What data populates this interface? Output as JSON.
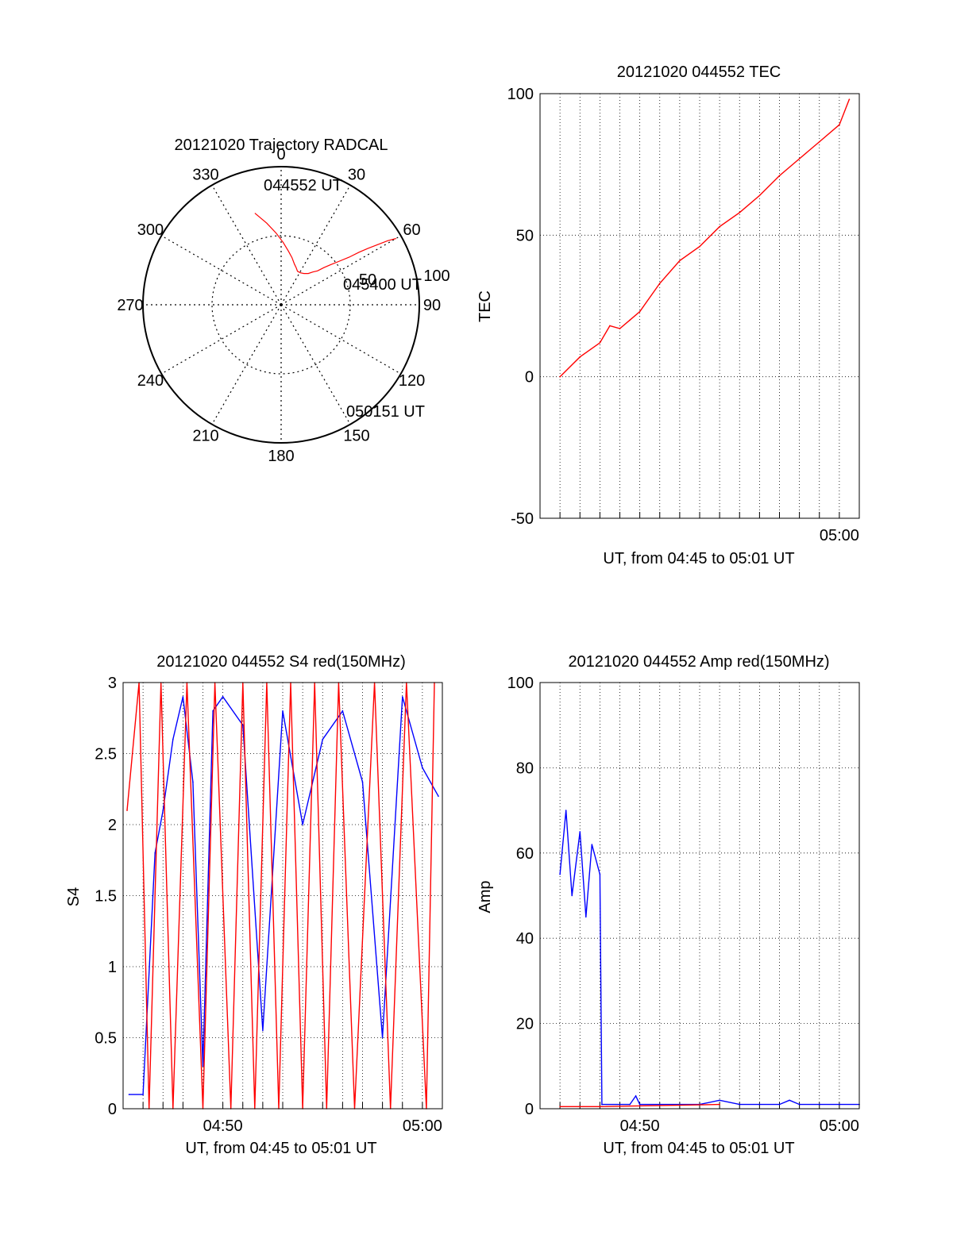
{
  "chart_data": [
    {
      "id": "trajectory",
      "type": "polar",
      "title": "20121020 Trajectory RADCAL",
      "angle_labels": [
        "0",
        "30",
        "60",
        "90",
        "120",
        "150",
        "180",
        "210",
        "240",
        "270",
        "300",
        "330"
      ],
      "radius_labels": [
        "50",
        "100"
      ],
      "radial_max": 100,
      "track": [
        [
          344,
          69
        ],
        [
          350,
          60
        ],
        [
          356,
          52
        ],
        [
          2,
          45
        ],
        [
          8,
          39
        ],
        [
          13,
          35
        ],
        [
          18,
          31
        ],
        [
          22,
          29
        ],
        [
          26,
          27
        ],
        [
          31,
          27
        ],
        [
          36,
          28
        ],
        [
          41,
          30
        ],
        [
          44,
          33
        ],
        [
          47,
          36
        ],
        [
          49,
          41
        ],
        [
          51,
          46
        ],
        [
          53,
          52
        ],
        [
          55,
          60
        ],
        [
          56,
          68
        ],
        [
          57,
          75
        ],
        [
          58,
          82
        ],
        [
          59,
          90
        ],
        [
          60,
          96
        ]
      ],
      "annotations": [
        "044552 UT",
        "045400 UT",
        "050151 UT"
      ],
      "track_color": "#ff0000"
    },
    {
      "id": "tec",
      "type": "line",
      "title": "20121020 044552 TEC",
      "xlabel": "UT, from 04:45 to 05:01 UT",
      "ylabel": "TEC",
      "xlim": [
        "04:45",
        "05:01"
      ],
      "ylim": [
        -50,
        100
      ],
      "y_ticks": [
        "-50",
        "0",
        "50",
        "100"
      ],
      "x_tick_labels": [
        "05:00"
      ],
      "series": [
        {
          "color": "#ff0000",
          "x": [
            "04:46",
            "04:47",
            "04:48",
            "04:48.5",
            "04:49",
            "04:49.5",
            "04:50",
            "04:51",
            "04:52",
            "04:53",
            "04:54",
            "04:55",
            "04:56",
            "04:57",
            "04:58",
            "04:59",
            "05:00",
            "05:00.5"
          ],
          "y": [
            0,
            7,
            12,
            18,
            17,
            20,
            23,
            33,
            41,
            46,
            53,
            58,
            64,
            71,
            77,
            83,
            89,
            98
          ]
        }
      ],
      "grid": true
    },
    {
      "id": "s4",
      "type": "line",
      "title": "20121020 044552 S4 red(150MHz)",
      "xlabel": "UT, from 04:45 to 05:01 UT",
      "ylabel": "S4",
      "xlim": [
        "04:45",
        "05:01"
      ],
      "ylim": [
        0,
        3
      ],
      "y_ticks": [
        "0",
        "0.5",
        "1",
        "1.5",
        "2",
        "2.5",
        "3"
      ],
      "x_tick_labels": [
        "04:50",
        "05:00"
      ],
      "series": [
        {
          "color": "#0000ff",
          "x": [
            "04:45.3",
            "04:46",
            "04:46.6",
            "04:47",
            "04:47.5",
            "04:48",
            "04:48.5",
            "04:49",
            "04:49.5",
            "04:50",
            "04:51",
            "04:52",
            "04:53",
            "04:54",
            "04:55",
            "04:56",
            "04:57",
            "04:58",
            "04:59",
            "05:00",
            "05:00.8"
          ],
          "y": [
            0.1,
            0.1,
            1.8,
            2.1,
            2.6,
            2.9,
            2.3,
            0.3,
            2.8,
            2.9,
            2.7,
            0.55,
            2.8,
            2.0,
            2.6,
            2.8,
            2.3,
            0.5,
            2.9,
            2.4,
            2.2
          ]
        },
        {
          "color": "#ff0000",
          "x": [
            "04:45.2",
            "04:45.8",
            "04:46.3",
            "04:46.9",
            "04:47.5",
            "04:48.2",
            "04:49",
            "04:49.6",
            "04:50.4",
            "04:51",
            "04:51.6",
            "04:52.2",
            "04:52.8",
            "04:53.4",
            "04:54",
            "04:54.6",
            "04:55.2",
            "04:55.8",
            "04:56.6",
            "04:57.6",
            "04:58.4",
            "04:59.2",
            "05:00.2",
            "05:00.6"
          ],
          "y": [
            2.1,
            3,
            0,
            3,
            0,
            3,
            0,
            3,
            0,
            3,
            0,
            3,
            0,
            3,
            0,
            3,
            0,
            3,
            0,
            3,
            0,
            3,
            0,
            3
          ]
        }
      ],
      "grid": true
    },
    {
      "id": "amp",
      "type": "line",
      "title": "20121020 044552 Amp red(150MHz)",
      "xlabel": "UT, from 04:45 to 05:01 UT",
      "ylabel": "Amp",
      "xlim": [
        "04:45",
        "05:01"
      ],
      "ylim": [
        0,
        100
      ],
      "y_ticks": [
        "0",
        "20",
        "40",
        "60",
        "80",
        "100"
      ],
      "x_tick_labels": [
        "04:50",
        "05:00"
      ],
      "series": [
        {
          "color": "#0000ff",
          "x": [
            "04:46",
            "04:46.3",
            "04:46.6",
            "04:47",
            "04:47.3",
            "04:47.6",
            "04:48",
            "04:48.1",
            "04:49",
            "04:49.5",
            "04:49.8",
            "04:50",
            "04:51",
            "04:53",
            "04:54",
            "04:55",
            "04:56",
            "04:57",
            "04:57.5",
            "04:58",
            "04:59",
            "05:01"
          ],
          "y": [
            55,
            70,
            50,
            65,
            45,
            62,
            55,
            1,
            1,
            1,
            3,
            1,
            1,
            1,
            2,
            1,
            1,
            1,
            2,
            1,
            1,
            1
          ]
        },
        {
          "color": "#ff0000",
          "x": [
            "04:46",
            "04:47",
            "04:48",
            "04:54"
          ],
          "y": [
            0.5,
            0.5,
            0.5,
            1
          ]
        }
      ],
      "grid": true
    }
  ]
}
